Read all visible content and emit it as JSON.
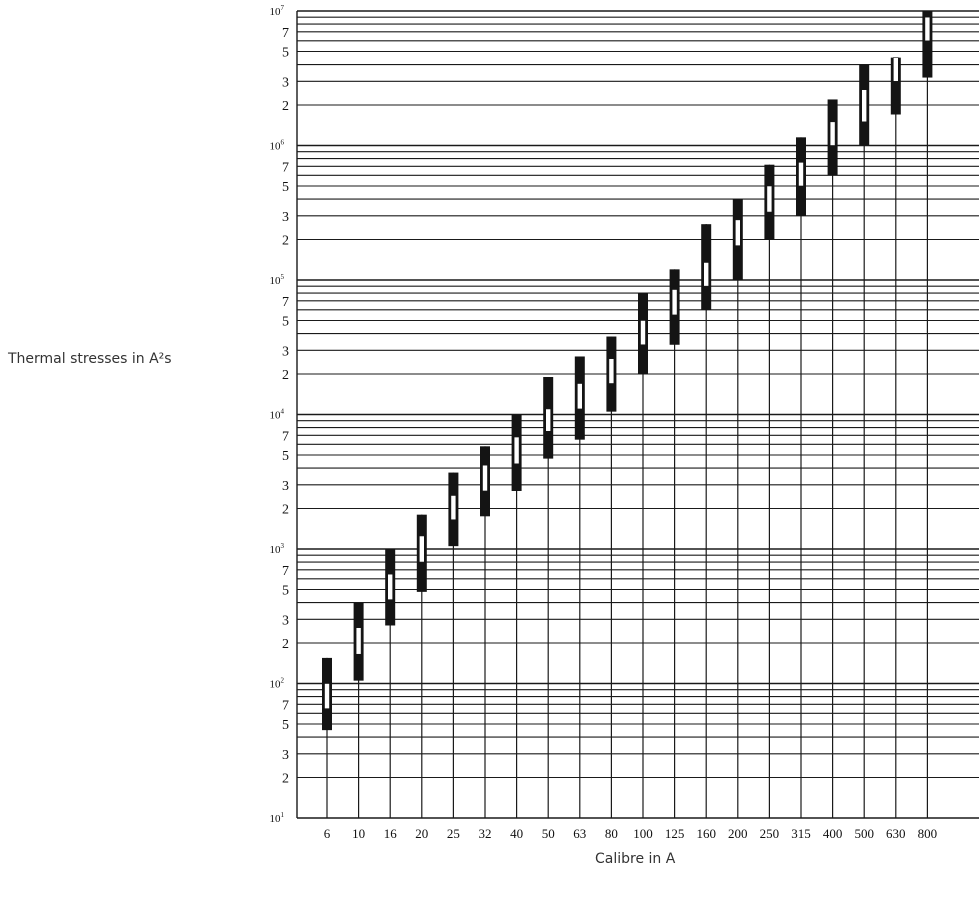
{
  "chart_data": {
    "type": "bar",
    "subtype": "range-with-marker",
    "xlabel": "Thermal stresses in A²s",
    "xlabel_note": "",
    "ylabel": "Thermal stresses in A²s",
    "x_axis_label": "Calibre in A",
    "y_scale": "log",
    "ylim": [
      10,
      10000000
    ],
    "y_decade_labels": [
      {
        "value": 10,
        "base": "10",
        "exp": "1"
      },
      {
        "value": 100,
        "base": "10",
        "exp": "2"
      },
      {
        "value": 1000,
        "base": "10",
        "exp": "3"
      },
      {
        "value": 10000,
        "base": "10",
        "exp": "4"
      },
      {
        "value": 100000,
        "base": "10",
        "exp": "5"
      },
      {
        "value": 1000000,
        "base": "10",
        "exp": "6"
      },
      {
        "value": 10000000,
        "base": "10",
        "exp": "7"
      }
    ],
    "y_minor_labels": [
      "2",
      "3",
      "5",
      "7"
    ],
    "grid": true,
    "categories": [
      "6",
      "10",
      "16",
      "20",
      "25",
      "32",
      "40",
      "50",
      "63",
      "80",
      "100",
      "125",
      "160",
      "200",
      "250",
      "315",
      "400",
      "500",
      "630",
      "800"
    ],
    "series": [
      {
        "low": [
          45,
          105,
          270,
          480,
          1050,
          1750,
          2700,
          4700,
          6500,
          10500,
          20000,
          33000,
          60000,
          100000,
          200000,
          300000,
          600000,
          1000000,
          1700000,
          3200000
        ],
        "high": [
          155,
          400,
          1000,
          1800,
          3700,
          5800,
          10000,
          19000,
          27000,
          38000,
          80000,
          120000,
          260000,
          400000,
          720000,
          1150000,
          2200000,
          4000000,
          4500000,
          10000000
        ],
        "marker_low": [
          65,
          165,
          420,
          800,
          1650,
          2700,
          4300,
          7500,
          11000,
          17000,
          33000,
          55000,
          90000,
          180000,
          320000,
          500000,
          1000000,
          1500000,
          3000000,
          6000000
        ],
        "marker_high": [
          100,
          260,
          650,
          1250,
          2500,
          4200,
          6800,
          11000,
          17000,
          26000,
          50000,
          85000,
          135000,
          280000,
          500000,
          750000,
          1500000,
          2600000,
          4500000,
          9000000
        ]
      }
    ]
  }
}
